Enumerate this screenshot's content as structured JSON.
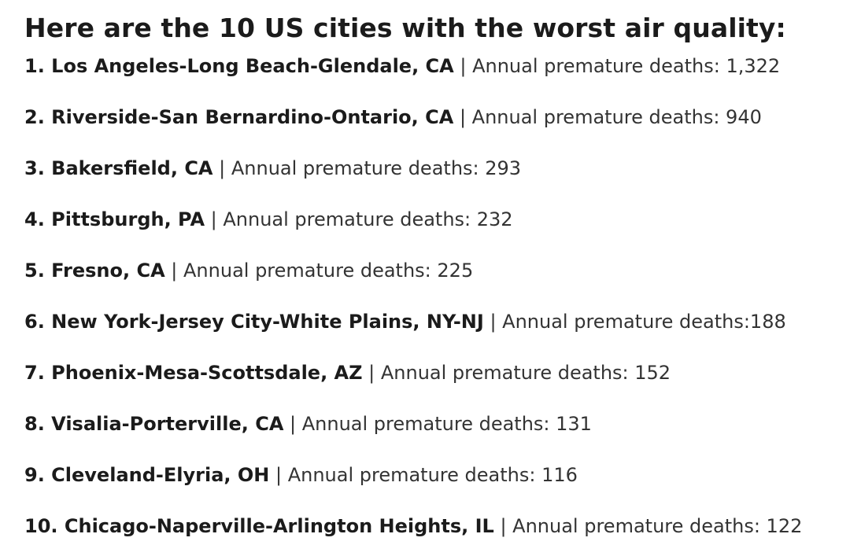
{
  "heading": "Here are the 10 US cities with the worst air quality:",
  "separator": " | ",
  "items": [
    {
      "city": "1. Los Angeles-Long Beach-Glendale, CA",
      "metric": "Annual premature deaths: 1,322"
    },
    {
      "city": "2. Riverside-San Bernardino-Ontario, CA",
      "metric": "Annual premature deaths: 940"
    },
    {
      "city": "3. Bakersfield, CA",
      "metric": "Annual premature deaths: 293"
    },
    {
      "city": "4. Pittsburgh, PA",
      "metric": "Annual premature deaths: 232"
    },
    {
      "city": "5. Fresno, CA",
      "metric": "Annual premature deaths: 225"
    },
    {
      "city": "6. New York-Jersey City-White Plains, NY-NJ",
      "metric": "Annual premature deaths:188"
    },
    {
      "city": "7. Phoenix-Mesa-Scottsdale, AZ",
      "metric": "Annual premature deaths: 152"
    },
    {
      "city": "8. Visalia-Porterville, CA",
      "metric": "Annual premature deaths: 131"
    },
    {
      "city": "9. Cleveland-Elyria, OH",
      "metric": "Annual premature deaths: 116"
    },
    {
      "city": "10. Chicago-Naperville-Arlington Heights, IL",
      "metric": "Annual premature deaths: 122"
    }
  ]
}
